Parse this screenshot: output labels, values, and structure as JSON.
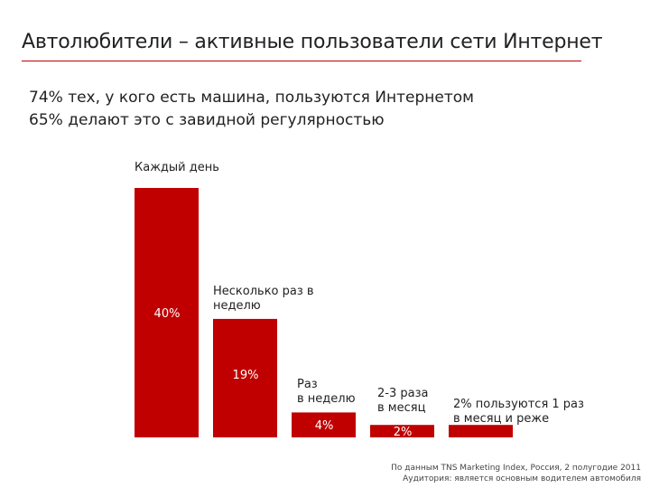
{
  "header": {
    "title": "Автолюбители – активные пользователи сети Интернет"
  },
  "summary": {
    "line1": "74% тех, у кого есть машина, пользуются Интернетом",
    "line2": "65% делают это с завидной регулярностью"
  },
  "chart_data": {
    "type": "bar",
    "categories": [
      "Каждый день",
      "Несколько раз в неделю",
      "Раз в неделю",
      "2-3 раза в месяц",
      "1 раз в месяц и реже"
    ],
    "category_labels": [
      [
        "Каждый день"
      ],
      [
        "Несколько раз в",
        "неделю"
      ],
      [
        "Раз",
        "в неделю"
      ],
      [
        "2-3 раза",
        "в месяц"
      ],
      [
        "2% пользуются 1 раз",
        "в месяц и реже"
      ]
    ],
    "values": [
      40,
      19,
      4,
      2,
      2
    ],
    "value_labels": [
      "40%",
      "19%",
      "4%",
      "2%",
      ""
    ],
    "ylim": [
      0,
      40
    ],
    "bar_color": "#c00000",
    "grid": false,
    "legend": "none"
  },
  "footnote": {
    "line1": "По данным TNS Marketing Index, Россия, 2 полугодие 2011",
    "line2": "Аудитория: является основным водителем автомобиля"
  }
}
